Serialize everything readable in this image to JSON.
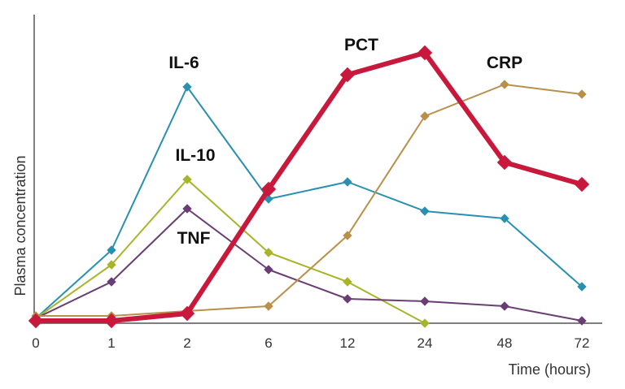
{
  "chart_data": {
    "type": "line",
    "title": "",
    "xlabel": "Time (hours)",
    "ylabel": "Plasma concentration",
    "categories": [
      "0",
      "1",
      "2",
      "6",
      "12",
      "24",
      "48",
      "72"
    ],
    "ylim": [
      0,
      100
    ],
    "grid": false,
    "legend": "inline labels",
    "series": [
      {
        "name": "IL-6",
        "label": "IL-6",
        "color": "#2a90b0",
        "values": [
          2,
          30,
          97,
          51,
          58,
          46,
          43,
          15
        ]
      },
      {
        "name": "IL-10",
        "label": "IL-10",
        "color": "#a7b52a",
        "values": [
          2,
          24,
          59,
          29,
          17,
          0,
          null,
          null
        ]
      },
      {
        "name": "TNF",
        "label": "TNF",
        "color": "#6a3d74",
        "values": [
          2,
          17,
          47,
          22,
          10,
          9,
          7,
          1
        ]
      },
      {
        "name": "CRP",
        "label": "CRP",
        "color": "#b8904a",
        "values": [
          3,
          3,
          5,
          7,
          36,
          85,
          98,
          94
        ]
      },
      {
        "name": "PCT",
        "label": "PCT",
        "color": "#c8183c",
        "values": [
          1,
          1,
          4,
          55,
          102,
          111,
          66,
          57
        ]
      }
    ]
  }
}
